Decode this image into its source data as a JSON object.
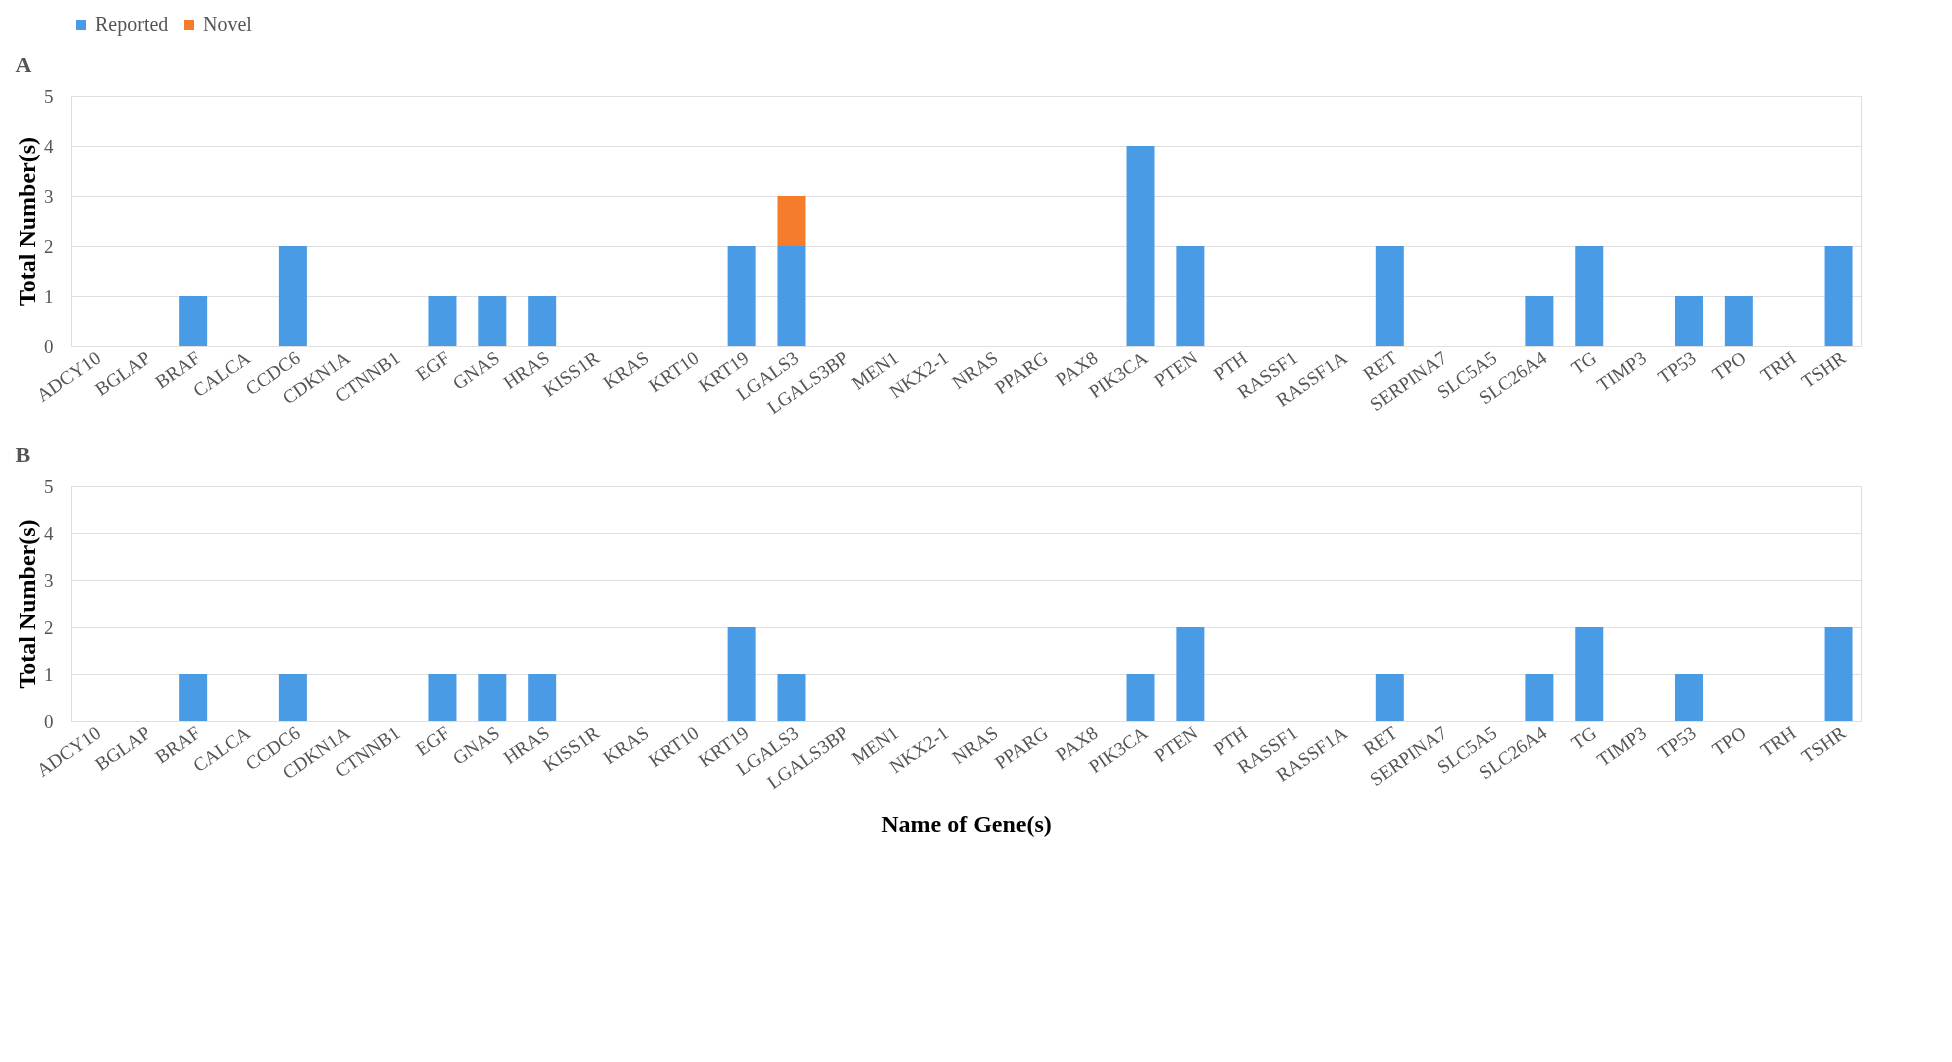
{
  "chart_data": [
    {
      "type": "bar",
      "title": "A",
      "ylabel": "Total Number(s)",
      "stacked": true,
      "legend": "top",
      "grid": "y",
      "categories": [
        "ADCY10",
        "BGLAP",
        "BRAF",
        "CALCA",
        "CCDC6",
        "CDKN1A",
        "CTNNB1",
        "EGF",
        "GNAS",
        "HRAS",
        "KISS1R",
        "KRAS",
        "KRT10",
        "KRT19",
        "LGALS3",
        "LGALS3BP",
        "MEN1",
        "NKX2-1",
        "NRAS",
        "PPARG",
        "PAX8",
        "PIK3CA",
        "PTEN",
        "PTH",
        "RASSF1",
        "RASSF1A",
        "RET",
        "SERPINA7",
        "SLC5A5",
        "SLC26A4",
        "TG",
        "TIMP3",
        "TP53",
        "TPO",
        "TRH",
        "TSHR"
      ],
      "ylim": [
        0,
        5
      ],
      "yticks": [
        0,
        1,
        2,
        3,
        4,
        5
      ],
      "series": [
        {
          "name": "Reported",
          "color": "#4a9be6",
          "values": [
            0,
            0,
            1,
            0,
            2,
            0,
            0,
            1,
            1,
            1,
            0,
            0,
            0,
            2,
            2,
            0,
            0,
            0,
            0,
            0,
            0,
            4,
            2,
            0,
            0,
            0,
            2,
            0,
            0,
            1,
            2,
            0,
            1,
            1,
            0,
            2
          ]
        },
        {
          "name": "Novel",
          "color": "#f57c2a",
          "values": [
            0,
            0,
            0,
            0,
            0,
            0,
            0,
            0,
            0,
            0,
            0,
            0,
            0,
            0,
            1,
            0,
            0,
            0,
            0,
            0,
            0,
            0,
            0,
            0,
            0,
            0,
            0,
            0,
            0,
            0,
            0,
            0,
            0,
            0,
            0,
            0
          ]
        }
      ]
    },
    {
      "type": "bar",
      "title": "B",
      "ylabel": "Total Number(s)",
      "xlabel": "Name of Gene(s)",
      "grid": "y",
      "categories": [
        "ADCY10",
        "BGLAP",
        "BRAF",
        "CALCA",
        "CCDC6",
        "CDKN1A",
        "CTNNB1",
        "EGF",
        "GNAS",
        "HRAS",
        "KISS1R",
        "KRAS",
        "KRT10",
        "KRT19",
        "LGALS3",
        "LGALS3BP",
        "MEN1",
        "NKX2-1",
        "NRAS",
        "PPARG",
        "PAX8",
        "PIK3CA",
        "PTEN",
        "PTH",
        "RASSF1",
        "RASSF1A",
        "RET",
        "SERPINA7",
        "SLC5A5",
        "SLC26A4",
        "TG",
        "TIMP3",
        "TP53",
        "TPO",
        "TRH",
        "TSHR"
      ],
      "ylim": [
        0,
        5
      ],
      "yticks": [
        0,
        1,
        2,
        3,
        4,
        5
      ],
      "series": [
        {
          "color": "#4a9be6",
          "values": [
            0,
            0,
            1,
            0,
            1,
            0,
            0,
            1,
            1,
            1,
            0,
            0,
            0,
            2,
            1,
            0,
            0,
            0,
            0,
            0,
            0,
            1,
            2,
            0,
            0,
            0,
            1,
            0,
            0,
            1,
            2,
            0,
            1,
            0,
            0,
            2
          ]
        }
      ]
    }
  ]
}
